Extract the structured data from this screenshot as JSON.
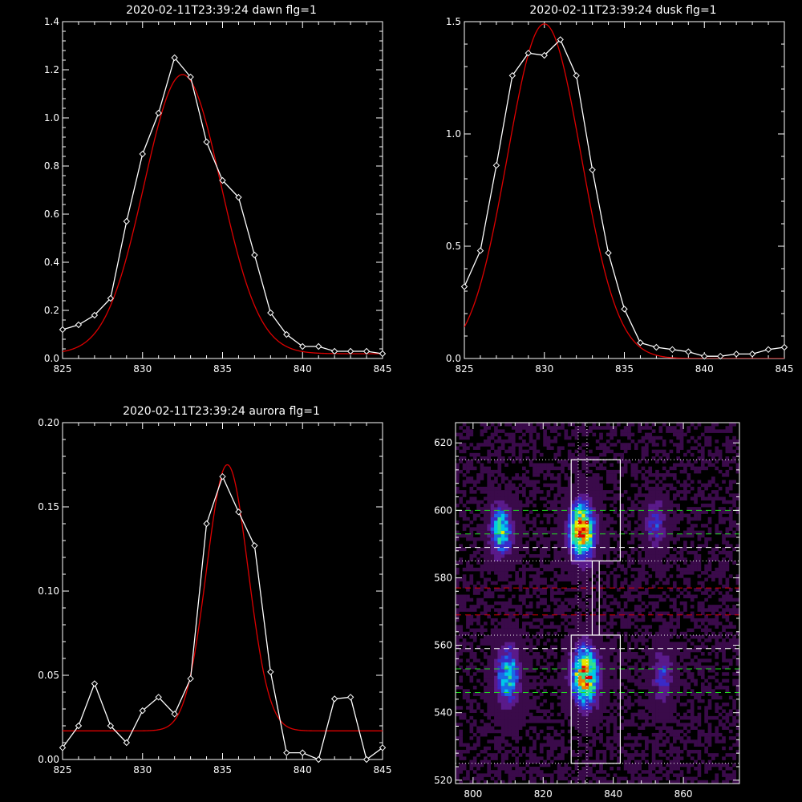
{
  "chart_data": [
    {
      "type": "line",
      "title": "2020-02-11T23:39:24 dawn flg=1",
      "xlim": [
        825,
        845
      ],
      "ylim": [
        0,
        1.4
      ],
      "xticks": [
        "825",
        "830",
        "835",
        "840",
        "845"
      ],
      "yticks": [
        "0.0",
        "0.2",
        "0.4",
        "0.6",
        "0.8",
        "1.0",
        "1.2",
        "1.4"
      ],
      "line_color": "#ffffff",
      "fit_color": "#dd0000",
      "x": [
        825,
        826,
        827,
        828,
        829,
        830,
        831,
        832,
        833,
        834,
        835,
        836,
        837,
        838,
        839,
        840,
        841,
        842,
        843,
        844,
        845
      ],
      "y": [
        0.12,
        0.14,
        0.18,
        0.25,
        0.57,
        0.85,
        1.02,
        1.25,
        1.17,
        0.9,
        0.74,
        0.67,
        0.43,
        0.19,
        0.1,
        0.05,
        0.05,
        0.03,
        0.03,
        0.03,
        0.02
      ],
      "fit": {
        "amplitude": 1.16,
        "center": 832.5,
        "sigma": 2.4,
        "baseline": 0.02
      }
    },
    {
      "type": "line",
      "title": "2020-02-11T23:39:24 dusk flg=1",
      "xlim": [
        825,
        845
      ],
      "ylim": [
        0,
        1.5
      ],
      "xticks": [
        "825",
        "830",
        "835",
        "840",
        "845"
      ],
      "yticks": [
        "0.0",
        "0.5",
        "1.0",
        "1.5"
      ],
      "line_color": "#ffffff",
      "fit_color": "#dd0000",
      "x": [
        825,
        826,
        827,
        828,
        829,
        830,
        831,
        832,
        833,
        834,
        835,
        836,
        837,
        838,
        839,
        840,
        841,
        842,
        843,
        844,
        845
      ],
      "y": [
        0.32,
        0.48,
        0.86,
        1.26,
        1.36,
        1.35,
        1.42,
        1.26,
        0.84,
        0.47,
        0.22,
        0.07,
        0.05,
        0.04,
        0.03,
        0.01,
        0.01,
        0.02,
        0.02,
        0.04,
        0.05
      ],
      "fit": {
        "amplitude": 1.49,
        "center": 830.0,
        "sigma": 2.3,
        "baseline": 0.0
      }
    },
    {
      "type": "line",
      "title": "2020-02-11T23:39:24 aurora flg=1",
      "xlim": [
        825,
        845
      ],
      "ylim": [
        0,
        0.2
      ],
      "xticks": [
        "825",
        "830",
        "835",
        "840",
        "845"
      ],
      "yticks": [
        "0.00",
        "0.05",
        "0.10",
        "0.15",
        "0.20"
      ],
      "line_color": "#ffffff",
      "fit_color": "#dd0000",
      "x": [
        825,
        826,
        827,
        828,
        829,
        830,
        831,
        832,
        833,
        834,
        835,
        836,
        837,
        838,
        839,
        840,
        841,
        842,
        843,
        844,
        845
      ],
      "y": [
        0.007,
        0.02,
        0.045,
        0.02,
        0.01,
        0.029,
        0.037,
        0.027,
        0.048,
        0.14,
        0.168,
        0.147,
        0.127,
        0.052,
        0.004,
        0.004,
        0.0,
        0.036,
        0.037,
        0.0,
        0.007
      ],
      "fit": {
        "amplitude": 0.158,
        "center": 835.3,
        "sigma": 1.3,
        "baseline": 0.017
      }
    },
    {
      "type": "heatmap",
      "title": "",
      "xlim": [
        795,
        876
      ],
      "ylim": [
        519,
        626
      ],
      "xticks": [
        "800",
        "820",
        "840",
        "860"
      ],
      "yticks": [
        "520",
        "540",
        "560",
        "580",
        "600",
        "620"
      ],
      "colormap": [
        "#000000",
        "#3a0a4a",
        "#5a1a8a",
        "#3a2ac8",
        "#1a6ae8",
        "#00c8e8",
        "#30e090",
        "#e8e800",
        "#f08000",
        "#e00000"
      ],
      "blobs": [
        {
          "x": 808,
          "y": 594,
          "sx": 2.2,
          "sy": 5,
          "peak": 0.62
        },
        {
          "x": 831,
          "y": 594,
          "sx": 2.5,
          "sy": 5.5,
          "peak": 1.0
        },
        {
          "x": 852,
          "y": 596,
          "sx": 2,
          "sy": 5,
          "peak": 0.32
        },
        {
          "x": 810,
          "y": 551,
          "sx": 2.3,
          "sy": 6,
          "peak": 0.58
        },
        {
          "x": 832,
          "y": 551,
          "sx": 2.6,
          "sy": 6,
          "peak": 0.9
        },
        {
          "x": 854,
          "y": 551,
          "sx": 2,
          "sy": 6,
          "peak": 0.3
        }
      ],
      "white_dotted_h": [
        615,
        585,
        563,
        525
      ],
      "white_dotted_v": [
        830,
        832.5
      ],
      "green_dashed_h": [
        600,
        593,
        553,
        546
      ],
      "white_dashed_h": [
        589,
        559
      ],
      "red_dashed_h": [
        577,
        569
      ],
      "boxes": [
        {
          "x0": 828,
          "x1": 842,
          "y0": 585,
          "y1": 615
        },
        {
          "x0": 828,
          "x1": 842,
          "y0": 525,
          "y1": 563
        },
        {
          "x0": 834,
          "x1": 836,
          "y0": 563,
          "y1": 585
        }
      ]
    }
  ]
}
